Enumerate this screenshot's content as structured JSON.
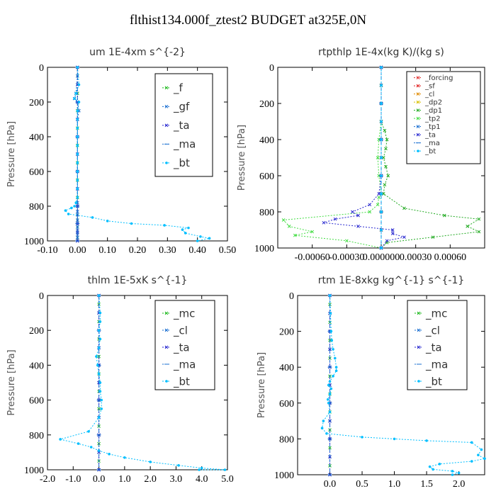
{
  "title": "flthist134.000f_ztest2  BUDGET at325E,0N",
  "chart_data": [
    {
      "type": "line",
      "title": "um   1E-4xm s^{-2}",
      "ylabel": "Pressure [hPa]",
      "xlim": [
        -0.1,
        0.5
      ],
      "ylim": [
        1000,
        0
      ],
      "x_ticks": [
        "-0.10",
        "0.00",
        "0.10",
        "0.20",
        "0.30",
        "0.40",
        "0.50"
      ],
      "x_tick_values": [
        -0.1,
        0.0,
        0.1,
        0.2,
        0.3,
        0.4,
        0.5
      ],
      "y_ticks": [
        "0",
        "200",
        "400",
        "600",
        "800",
        "1000"
      ],
      "y_tick_values": [
        0,
        200,
        400,
        600,
        800,
        1000
      ],
      "legend": "top-right",
      "series": [
        {
          "name": "_f",
          "color": "#22bb22",
          "marker": "x",
          "x": [
            0,
            0,
            0,
            0,
            0,
            0,
            0,
            0,
            0,
            0,
            0,
            0,
            0,
            0,
            0,
            0,
            0,
            0,
            0,
            0,
            0,
            0,
            0,
            0
          ],
          "y": [
            0,
            50,
            100,
            150,
            200,
            250,
            300,
            350,
            400,
            450,
            500,
            550,
            600,
            650,
            700,
            750,
            800,
            850,
            880,
            900,
            920,
            950,
            980,
            1000
          ]
        },
        {
          "name": "_gf",
          "color": "#1a6fd1",
          "marker": "x",
          "x": [
            0,
            0,
            -0.005,
            -0.01,
            0,
            0.005,
            0,
            0,
            0,
            0,
            0,
            0,
            0,
            0,
            0,
            0,
            0,
            0,
            0,
            0,
            0,
            0
          ],
          "y": [
            0,
            50,
            150,
            180,
            200,
            250,
            300,
            400,
            500,
            600,
            700,
            780,
            800,
            830,
            850,
            880,
            900,
            920,
            940,
            960,
            980,
            1000
          ]
        },
        {
          "name": "_ta",
          "color": "#2a2ad0",
          "marker": "x",
          "x": [
            0,
            0,
            0,
            0,
            0,
            0,
            0,
            0,
            0,
            0,
            0,
            0
          ],
          "y": [
            0,
            100,
            200,
            300,
            400,
            500,
            600,
            700,
            800,
            900,
            950,
            1000
          ]
        },
        {
          "name": "_ma",
          "color": "#1a6fd1",
          "marker": "dash",
          "x": [
            0,
            0,
            0,
            0,
            0,
            0,
            0
          ],
          "y": [
            0,
            200,
            400,
            600,
            800,
            900,
            1000
          ]
        },
        {
          "name": "_bt",
          "color": "#00bfff",
          "marker": "dot",
          "x": [
            0,
            0.005,
            -0.005,
            -0.01,
            0.005,
            0,
            0,
            0,
            0,
            0,
            0,
            0,
            0,
            0,
            0,
            0,
            -0.005,
            -0.01,
            -0.02,
            -0.04,
            -0.03,
            0.05,
            0.1,
            0.18,
            0.29,
            0.37,
            0.35,
            0.36,
            0.41,
            0.44,
            0.4
          ],
          "y": [
            0,
            100,
            150,
            180,
            200,
            250,
            300,
            350,
            400,
            450,
            500,
            550,
            600,
            650,
            700,
            750,
            780,
            800,
            810,
            825,
            845,
            865,
            885,
            900,
            910,
            925,
            935,
            955,
            975,
            985,
            1000
          ]
        }
      ]
    },
    {
      "type": "line",
      "title": "rtpthlp   1E-4x(kg K)/(kg s)",
      "ylabel": "Pressure [hPa]",
      "xlim": [
        -0.0009,
        0.0009
      ],
      "ylim": [
        1000,
        0
      ],
      "x_ticks": [
        "-0.00060",
        "-0.00030",
        "0.000000",
        "0.00030",
        "0.00060"
      ],
      "x_tick_values": [
        -0.0006,
        -0.0003,
        0.0,
        0.0003,
        0.0006
      ],
      "y_ticks": [
        "0",
        "200",
        "400",
        "600",
        "800",
        "1000"
      ],
      "y_tick_values": [
        0,
        200,
        400,
        600,
        800,
        1000
      ],
      "legend": "top-right",
      "series": [
        {
          "name": "_forcing",
          "color": "#e03030",
          "marker": "x",
          "x": [
            0,
            0,
            0,
            0,
            0,
            0,
            0,
            0,
            0,
            0,
            0
          ],
          "y": [
            0,
            100,
            200,
            300,
            400,
            500,
            600,
            700,
            800,
            900,
            1000
          ]
        },
        {
          "name": "_sf",
          "color": "#e02020",
          "marker": "x",
          "x": [
            0,
            0,
            0,
            0,
            0,
            0,
            0,
            0,
            0,
            0,
            0
          ],
          "y": [
            0,
            100,
            200,
            300,
            400,
            500,
            600,
            700,
            800,
            900,
            1000
          ]
        },
        {
          "name": "_cl",
          "color": "#e08a00",
          "marker": "x",
          "x": [
            0,
            0,
            0,
            0,
            0,
            0,
            0,
            0,
            0,
            0,
            0
          ],
          "y": [
            0,
            100,
            200,
            300,
            400,
            500,
            600,
            700,
            800,
            900,
            1000
          ]
        },
        {
          "name": "_dp2",
          "color": "#d8c000",
          "marker": "x",
          "x": [
            0,
            0,
            0,
            0,
            0,
            0,
            0,
            0,
            0,
            0,
            0
          ],
          "y": [
            0,
            100,
            200,
            300,
            400,
            500,
            600,
            700,
            800,
            900,
            1000
          ]
        },
        {
          "name": "_dp1",
          "color": "#22aa22",
          "marker": "x",
          "x": [
            0,
            0,
            0,
            0,
            3e-05,
            5e-05,
            4e-05,
            2e-05,
            4e-05,
            6e-05,
            3e-05,
            2e-05,
            0.0002,
            0.00055,
            0.00085,
            0.00075,
            0.00085,
            0.00045,
            5e-05,
            0
          ],
          "y": [
            0,
            100,
            200,
            300,
            350,
            400,
            450,
            500,
            550,
            600,
            650,
            700,
            780,
            820,
            840,
            880,
            910,
            940,
            970,
            1000
          ]
        },
        {
          "name": "_tp2",
          "color": "#44dd44",
          "marker": "x",
          "x": [
            0,
            0,
            0,
            0,
            -2e-05,
            -3e-05,
            -2e-05,
            0,
            -2e-05,
            -3e-05,
            -0.0001,
            -0.00085,
            -0.0008,
            -0.0006,
            -0.00075,
            -0.0003,
            0
          ],
          "y": [
            0,
            100,
            200,
            300,
            400,
            500,
            600,
            700,
            720,
            760,
            800,
            845,
            880,
            910,
            930,
            960,
            1000
          ]
        },
        {
          "name": "_tp1",
          "color": "#1a6fd1",
          "marker": "x",
          "x": [
            0,
            0,
            0,
            0,
            0,
            0,
            0,
            0,
            0,
            0,
            0
          ],
          "y": [
            0,
            100,
            200,
            300,
            400,
            500,
            600,
            700,
            800,
            900,
            1000
          ]
        },
        {
          "name": "_ta",
          "color": "#2a2ad0",
          "marker": "x",
          "x": [
            0,
            0,
            0,
            0,
            -2e-05,
            -0.0001,
            -0.00025,
            -0.0002,
            -0.0004,
            -0.0005,
            -0.0002,
            0.0001,
            0.0001,
            0.0002,
            5e-05,
            0
          ],
          "y": [
            0,
            200,
            400,
            600,
            700,
            760,
            800,
            820,
            840,
            860,
            880,
            900,
            920,
            940,
            960,
            1000
          ]
        },
        {
          "name": "_ma",
          "color": "#1a6fd1",
          "marker": "dash",
          "x": [
            0,
            0,
            0,
            0,
            0,
            0
          ],
          "y": [
            0,
            200,
            400,
            600,
            800,
            1000
          ]
        },
        {
          "name": "_bt",
          "color": "#00bfff",
          "marker": "dot",
          "x": [
            0,
            0,
            0,
            0,
            0,
            0,
            0,
            0,
            0,
            0,
            0
          ],
          "y": [
            0,
            100,
            200,
            300,
            400,
            500,
            600,
            700,
            800,
            900,
            1000
          ]
        }
      ]
    },
    {
      "type": "line",
      "title": "thlm   1E-5xK s^{-1}",
      "ylabel": "Pressure [hPa]",
      "xlim": [
        -2.0,
        5.0
      ],
      "ylim": [
        1000,
        0
      ],
      "x_ticks": [
        "-2.0",
        "-1.0",
        "0.0",
        "1.0",
        "2.0",
        "3.0",
        "4.0",
        "5.0"
      ],
      "x_tick_values": [
        -2,
        -1,
        0,
        1,
        2,
        3,
        4,
        5
      ],
      "y_ticks": [
        "0",
        "200",
        "400",
        "600",
        "800",
        "1000"
      ],
      "y_tick_values": [
        0,
        200,
        400,
        600,
        800,
        1000
      ],
      "legend": "top-right",
      "series": [
        {
          "name": "_mc",
          "color": "#22bb22",
          "marker": "x",
          "x": [
            0,
            0,
            0,
            0,
            0,
            0,
            0,
            0,
            0,
            0,
            0,
            0,
            0,
            0,
            0,
            0,
            0,
            0,
            0,
            0,
            0
          ],
          "y": [
            0,
            50,
            100,
            150,
            200,
            250,
            300,
            350,
            400,
            450,
            500,
            550,
            600,
            650,
            700,
            750,
            800,
            850,
            900,
            950,
            1000
          ]
        },
        {
          "name": "_cl",
          "color": "#1a6fd1",
          "marker": "x",
          "x": [
            0,
            0,
            0,
            0,
            0,
            0,
            0,
            0,
            0,
            0,
            0
          ],
          "y": [
            0,
            100,
            200,
            300,
            400,
            500,
            600,
            700,
            800,
            900,
            1000
          ]
        },
        {
          "name": "_ta",
          "color": "#2a2ad0",
          "marker": "x",
          "x": [
            0,
            0,
            0,
            0,
            0,
            0,
            0,
            0,
            0,
            0,
            0
          ],
          "y": [
            0,
            100,
            200,
            300,
            400,
            500,
            600,
            700,
            800,
            900,
            1000
          ]
        },
        {
          "name": "_ma",
          "color": "#1a6fd1",
          "marker": "dash",
          "x": [
            0,
            0,
            0,
            0,
            0,
            0
          ],
          "y": [
            0,
            200,
            400,
            600,
            800,
            1000
          ]
        },
        {
          "name": "_bt",
          "color": "#00bfff",
          "marker": "dot",
          "x": [
            0,
            0.05,
            0.05,
            0,
            0.05,
            0,
            -0.1,
            -0.05,
            0,
            0.05,
            0.05,
            0.1,
            0.1,
            0,
            -0.4,
            -1.5,
            -0.8,
            -0.3,
            0,
            0.4,
            1.0,
            2.0,
            3.1,
            4.0,
            4.9,
            3.9
          ],
          "y": [
            0,
            100,
            150,
            200,
            250,
            300,
            350,
            400,
            450,
            500,
            550,
            600,
            650,
            700,
            780,
            825,
            850,
            870,
            890,
            910,
            930,
            955,
            975,
            990,
            1000,
            1000
          ]
        }
      ]
    },
    {
      "type": "line",
      "title": "rtm   1E-8xkg kg^{-1} s^{-1}",
      "ylabel": "Pressure [hPa]",
      "xlim": [
        -0.5,
        2.4
      ],
      "ylim": [
        1000,
        0
      ],
      "x_ticks": [
        "0.0",
        "0.5",
        "1.0",
        "1.5",
        "2.0"
      ],
      "x_tick_values": [
        0,
        0.5,
        1.0,
        1.5,
        2.0
      ],
      "y_ticks": [
        "0",
        "200",
        "400",
        "600",
        "800",
        "1000"
      ],
      "y_tick_values": [
        0,
        200,
        400,
        600,
        800,
        1000
      ],
      "legend": "top-right",
      "series": [
        {
          "name": "_mc",
          "color": "#22bb22",
          "marker": "x",
          "x": [
            0,
            0,
            0,
            0,
            0,
            0,
            0,
            0,
            0,
            0,
            0,
            0,
            0,
            0,
            0,
            0,
            0,
            0,
            0,
            0,
            0
          ],
          "y": [
            0,
            50,
            100,
            150,
            200,
            250,
            300,
            350,
            400,
            450,
            500,
            550,
            600,
            650,
            700,
            750,
            800,
            850,
            900,
            950,
            1000
          ]
        },
        {
          "name": "_cl",
          "color": "#1a6fd1",
          "marker": "x",
          "x": [
            0,
            0,
            0,
            0,
            0,
            0,
            0,
            0,
            0,
            0,
            0
          ],
          "y": [
            0,
            100,
            200,
            300,
            400,
            500,
            600,
            700,
            800,
            900,
            1000
          ]
        },
        {
          "name": "_ta",
          "color": "#2a2ad0",
          "marker": "x",
          "x": [
            0,
            0,
            0,
            0,
            0,
            0,
            0,
            0,
            0,
            0,
            0
          ],
          "y": [
            0,
            100,
            200,
            300,
            400,
            500,
            600,
            700,
            800,
            900,
            1000
          ]
        },
        {
          "name": "_ma",
          "color": "#1a6fd1",
          "marker": "dash",
          "x": [
            0,
            0,
            0,
            0,
            0,
            0
          ],
          "y": [
            0,
            200,
            400,
            600,
            800,
            1000
          ]
        },
        {
          "name": "_bt",
          "color": "#00bfff",
          "marker": "dot",
          "x": [
            0,
            0.01,
            0.02,
            0.03,
            0.05,
            0.08,
            0.1,
            0.1,
            0.05,
            0.0,
            -0.02,
            0.02,
            0.0,
            -0.03,
            -0.02,
            0.0,
            -0.1,
            -0.12,
            -0.05,
            0.5,
            1.0,
            1.5,
            2.2,
            2.35,
            2.3,
            2.4,
            2.2,
            1.7,
            1.55,
            1.6,
            1.9,
            2.0,
            1.9
          ],
          "y": [
            0,
            100,
            200,
            250,
            300,
            350,
            400,
            420,
            450,
            480,
            500,
            520,
            550,
            580,
            600,
            650,
            700,
            740,
            770,
            790,
            800,
            810,
            820,
            860,
            890,
            910,
            925,
            940,
            955,
            970,
            980,
            990,
            1000
          ]
        }
      ]
    }
  ]
}
